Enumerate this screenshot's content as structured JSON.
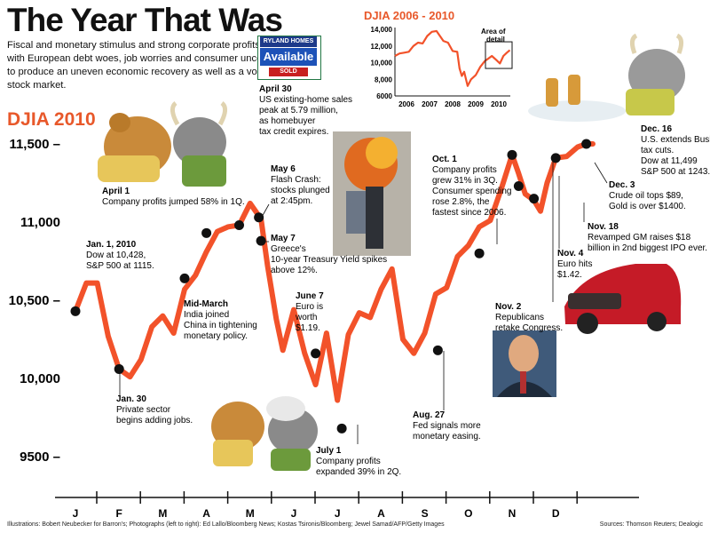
{
  "header": {
    "title": "The Year That Was",
    "intro": "Fiscal and monetary stimulus and strong corporate profits vied with European debt woes, job worries and consumer uncertainty to produce an uneven economic recovery as well as a volatile stock market."
  },
  "main_chart_label": "DJIA 2010",
  "colors": {
    "accent": "#e8582a",
    "line": "#f2522a",
    "marker": "#111111"
  },
  "chart_data": [
    {
      "type": "line",
      "title": "DJIA 2010",
      "xlabel": "",
      "ylabel": "",
      "ylim": [
        9450,
        11650
      ],
      "yticks": [
        {
          "value": 11500,
          "label": "11,500 –"
        },
        {
          "value": 11000,
          "label": "11,000"
        },
        {
          "value": 10500,
          "label": "10,500 –"
        },
        {
          "value": 10000,
          "label": "10,000"
        },
        {
          "value": 9500,
          "label": "9500 –"
        }
      ],
      "month_labels": [
        "J",
        "F",
        "M",
        "A",
        "M",
        "J",
        "J",
        "A",
        "S",
        "O",
        "N",
        "D"
      ],
      "series": [
        {
          "name": "DJIA",
          "x": [
            0,
            0.25,
            0.5,
            0.75,
            1,
            1.25,
            1.5,
            1.75,
            2,
            2.25,
            2.5,
            2.75,
            3,
            3.25,
            3.5,
            3.75,
            4,
            4.25,
            4.4,
            4.6,
            4.75,
            5,
            5.25,
            5.5,
            5.75,
            6,
            6.25,
            6.5,
            6.75,
            7,
            7.25,
            7.5,
            7.75,
            8,
            8.25,
            8.5,
            8.75,
            9,
            9.25,
            9.5,
            9.75,
            10,
            10.15,
            10.3,
            10.5,
            10.65,
            10.8,
            11,
            11.25,
            11.5,
            11.7,
            11.85
          ],
          "values": [
            10430,
            10610,
            10610,
            10270,
            10060,
            10010,
            10120,
            10330,
            10400,
            10290,
            10570,
            10660,
            10810,
            10940,
            10970,
            10980,
            11120,
            11020,
            10720,
            10380,
            10180,
            10440,
            10160,
            9960,
            10290,
            9860,
            10280,
            10420,
            10390,
            10570,
            10700,
            10250,
            10160,
            10290,
            10540,
            10580,
            10780,
            10850,
            10970,
            11010,
            11210,
            11430,
            11310,
            11180,
            11140,
            11070,
            11250,
            11410,
            11420,
            11480,
            11500,
            11500
          ]
        }
      ],
      "events": [
        {
          "x": 0,
          "value": 10430,
          "title": "Jan. 1, 2010",
          "lines": [
            "Dow at 10,428,",
            "S&P 500 at 1115."
          ]
        },
        {
          "x": 1,
          "value": 10060,
          "title": "Jan. 30",
          "lines": [
            "Private sector",
            "begins adding jobs."
          ]
        },
        {
          "x": 2.5,
          "value": 10640,
          "title": "Mid-March",
          "lines": [
            "India joined",
            "China in tightening",
            "monetary policy."
          ]
        },
        {
          "x": 3,
          "value": 10930,
          "title": "April 1",
          "lines": [
            "Company profits jumped 58% in 1Q."
          ]
        },
        {
          "x": 3.75,
          "value": 10980,
          "title": "April 30",
          "lines": [
            "US existing-home sales",
            "peak at 5.79 million,",
            "as homebuyer",
            "tax credit expires."
          ]
        },
        {
          "x": 4.2,
          "value": 11030,
          "title": "May 6",
          "lines": [
            "Flash Crash:",
            "stocks plunged",
            "at 2:45pm."
          ]
        },
        {
          "x": 4.25,
          "value": 10880,
          "title": "May 7",
          "lines": [
            "Greece's",
            "10-year Treasury Yield spikes",
            "above 12%."
          ]
        },
        {
          "x": 5.5,
          "value": 10160,
          "title": "June 7",
          "lines": [
            "Euro is",
            "worth",
            "$1.19."
          ]
        },
        {
          "x": 6.1,
          "value": 9680,
          "title": "July 1",
          "lines": [
            "Company profits",
            "expanded 39% in 2Q."
          ]
        },
        {
          "x": 8.3,
          "value": 10180,
          "title": "Aug. 27",
          "lines": [
            "Fed signals more",
            "monetary easing."
          ]
        },
        {
          "x": 9.25,
          "value": 10800,
          "title": "Oct. 1",
          "lines": [
            "Company profits",
            "grew 31% in 3Q.",
            "Consumer spending",
            "rose 2.8%, the",
            "fastest since 2006."
          ]
        },
        {
          "x": 10,
          "value": 11430,
          "title": "Nov. 2",
          "lines": [
            "Republicans",
            "retake Congress."
          ]
        },
        {
          "x": 10.15,
          "value": 11230,
          "title": "Nov. 4",
          "lines": [
            "Euro hits",
            "$1.42."
          ]
        },
        {
          "x": 10.5,
          "value": 11150,
          "title": "Nov. 18",
          "lines": [
            "Revamped GM raises $18",
            "billion in 2nd biggest IPO ever."
          ]
        },
        {
          "x": 11,
          "value": 11410,
          "title": "Dec. 3",
          "lines": [
            "Crude oil tops $89,",
            "Gold is over $1400."
          ]
        },
        {
          "x": 11.7,
          "value": 11500,
          "title": "Dec. 16",
          "lines": [
            "U.S. extends Bush",
            "tax cuts.",
            "Dow at 11,499",
            "S&P 500 at 1243."
          ]
        }
      ]
    },
    {
      "type": "line",
      "title": "DJIA 2006 - 2010",
      "xlabel": "",
      "ylabel": "",
      "ylim": [
        6000,
        14000
      ],
      "yticks": [
        {
          "value": 14000,
          "label": "14,000"
        },
        {
          "value": 12000,
          "label": "12,000"
        },
        {
          "value": 10000,
          "label": "10,000"
        },
        {
          "value": 8000,
          "label": "8,000"
        },
        {
          "value": 6000,
          "label": "6000"
        }
      ],
      "xticks": [
        "2006",
        "2007",
        "2008",
        "2009",
        "2010"
      ],
      "annotation": "Area of detail",
      "series": [
        {
          "name": "DJIA",
          "x": [
            2006,
            2006.2,
            2006.4,
            2006.6,
            2006.8,
            2007,
            2007.2,
            2007.4,
            2007.6,
            2007.8,
            2007.95,
            2008.1,
            2008.3,
            2008.5,
            2008.7,
            2008.8,
            2008.9,
            2009,
            2009.15,
            2009.3,
            2009.5,
            2009.7,
            2009.9,
            2010,
            2010.2,
            2010.4,
            2010.55,
            2010.7,
            2010.85,
            2010.98
          ],
          "values": [
            10800,
            11100,
            11200,
            11300,
            12000,
            12400,
            12300,
            13200,
            13700,
            13800,
            13200,
            12600,
            12400,
            11400,
            11300,
            9300,
            8400,
            8900,
            7200,
            8000,
            8500,
            9500,
            10200,
            10400,
            10800,
            10300,
            9900,
            10800,
            11200,
            11500
          ]
        }
      ]
    }
  ],
  "images": {
    "sign": {
      "brand": "RYLAND HOMES",
      "main": "Available",
      "sold": "SOLD"
    }
  },
  "footer": {
    "credits": "Illustrations: Bobert Neubecker for Barron's; Photographs (left to right): Ed Lallo/Bloomberg News; Kostas Tsironis/Bloomberg; Jewel Samad/AFP/Getty Images",
    "sources": "Sources: Thomson Reuters; Dealogic"
  }
}
